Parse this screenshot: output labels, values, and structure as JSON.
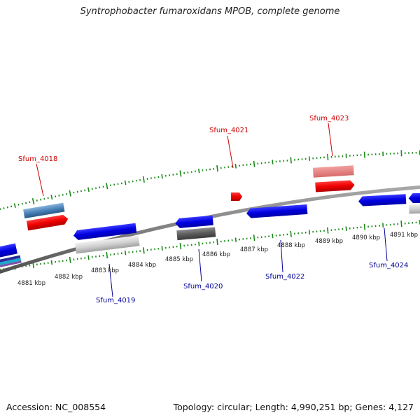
{
  "title": "Syntrophobacter fumaroxidans MPOB, complete genome",
  "footer": {
    "accession": "Accession: NC_008554",
    "summary": "Topology: circular; Length: 4,990,251 bp; Genes: 4,127"
  },
  "colors": {
    "forward_label": "#cc0000",
    "reverse_label": "#000099",
    "tick": "#1a8a1a",
    "backbone": "#808080"
  },
  "kbp_labels": [
    "4881 kbp",
    "4882 kbp",
    "4883 kbp",
    "4884 kbp",
    "4885 kbp",
    "4886 kbp",
    "4887 kbp",
    "4888 kbp",
    "4889 kbp",
    "4890 kbp",
    "4891 kbp"
  ],
  "gene_labels": {
    "forward": [
      "Sfum_4018",
      "Sfum_4021",
      "Sfum_4023"
    ],
    "reverse": [
      "Sfum_4019",
      "Sfum_4020",
      "Sfum_4022",
      "Sfum_4024"
    ]
  }
}
